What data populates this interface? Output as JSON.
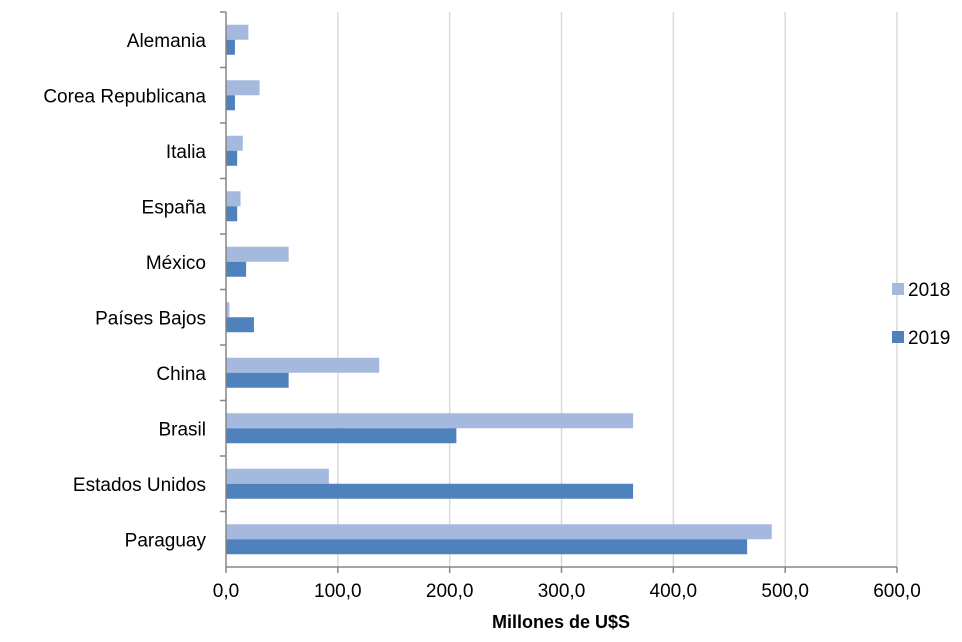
{
  "chart_data": {
    "type": "bar",
    "orientation": "horizontal",
    "categories": [
      "Paraguay",
      "Estados Unidos",
      "Brasil",
      "China",
      "Países Bajos",
      "México",
      "España",
      "Italia",
      "Corea Republicana",
      "Alemania"
    ],
    "series": [
      {
        "name": "2018",
        "color": "#A5B8DD",
        "values": [
          488.0,
          92.0,
          364.0,
          137.0,
          3.0,
          56.0,
          13.0,
          15.0,
          30.0,
          20.0
        ]
      },
      {
        "name": "2019",
        "color": "#4F81BD",
        "values": [
          466.0,
          364.0,
          206.0,
          56.0,
          25.0,
          18.0,
          10.0,
          10.0,
          8.0,
          8.0
        ]
      }
    ],
    "xlabel": "Millones de U$S",
    "ylabel": "",
    "xlim": [
      0,
      600
    ],
    "xticks": [
      "0,0",
      "100,0",
      "200,0",
      "300,0",
      "400,0",
      "500,0",
      "600,0"
    ],
    "grid": true,
    "legend_position": "right",
    "legend_order": [
      "2018",
      "2019"
    ]
  }
}
